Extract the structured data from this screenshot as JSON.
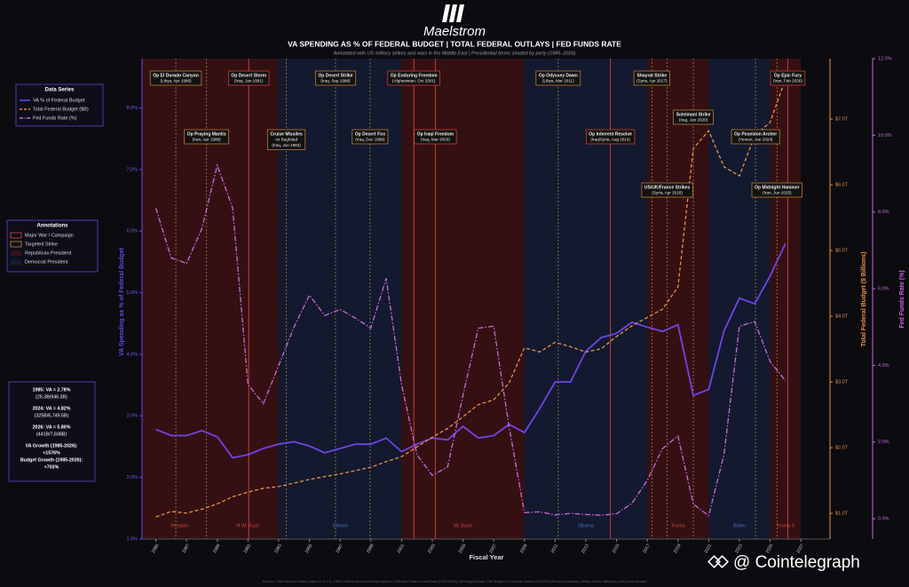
{
  "chart_data": {
    "type": "line",
    "brand": "Maelstrom",
    "title": "VA SPENDING AS % OF FEDERAL BUDGET  |  TOTAL FEDERAL OUTLAYS  |  FED FUNDS RATE",
    "subtitle": "Annotated with US military strikes and wars in the Middle East  |  Presidential terms shaded by party  (1985–2026)",
    "xlabel": "Fiscal Year",
    "ylabel": "VA Spending as % of Federal Budget",
    "y2label": "Total Federal Budget ($ Billions)",
    "y3label": "Fed Funds Rate (%)",
    "source": "Sources: OMB Historical Tables (Table 4.1 & 3.2), FRED Federal Government Expenditures & Effective Federal Funds Rate (FEDFUNDS), VA Budget in Brief, CBO Budget & Economic Outlook 2025-2036 (Revenue Baseline), Military strikes: Wikipedia, DoD press releases",
    "watermark": "@ Cointelegraph",
    "xlim": [
      1984.1,
      2028.9
    ],
    "xticks": [
      1985,
      1987,
      1989,
      1991,
      1993,
      1995,
      1997,
      1999,
      2001,
      2003,
      2005,
      2007,
      2009,
      2011,
      2013,
      2015,
      2017,
      2019,
      2021,
      2023,
      2025,
      2027
    ],
    "ylim": [
      1.0,
      8.8
    ],
    "yticks": [
      {
        "value": 1,
        "label": "1.0%"
      },
      {
        "value": 2,
        "label": "2.0%"
      },
      {
        "value": 3,
        "label": "3.0%"
      },
      {
        "value": 4,
        "label": "4.0%"
      },
      {
        "value": 5,
        "label": "5.0%"
      },
      {
        "value": 6,
        "label": "6.0%"
      },
      {
        "value": 7,
        "label": "7.0%"
      },
      {
        "value": 8,
        "label": "8.0%"
      }
    ],
    "y2lim": [
      610,
      7920
    ],
    "y2ticks": [
      {
        "value": 1000,
        "label": "$1.0T"
      },
      {
        "value": 2000,
        "label": "$2.0T"
      },
      {
        "value": 3000,
        "label": "$3.0T"
      },
      {
        "value": 4000,
        "label": "$4.0T"
      },
      {
        "value": 5000,
        "label": "$5.0T"
      },
      {
        "value": 6000,
        "label": "$6.0T"
      },
      {
        "value": 7000,
        "label": "$7.0T"
      }
    ],
    "y3lim": [
      -0.53,
      12
    ],
    "y3ticks": [
      {
        "value": 0,
        "label": "0.0%"
      },
      {
        "value": 2,
        "label": "2.0%"
      },
      {
        "value": 4,
        "label": "4.0%"
      },
      {
        "value": 6,
        "label": "6.0%"
      },
      {
        "value": 8,
        "label": "8.0%"
      },
      {
        "value": 10,
        "label": "10.0%"
      },
      {
        "value": 12,
        "label": "12.0%"
      }
    ],
    "grid": false,
    "x": [
      1985,
      1986,
      1987,
      1988,
      1989,
      1990,
      1991,
      1992,
      1993,
      1994,
      1995,
      1996,
      1997,
      1998,
      1999,
      2000,
      2001,
      2002,
      2003,
      2004,
      2005,
      2006,
      2007,
      2008,
      2009,
      2010,
      2011,
      2012,
      2013,
      2014,
      2015,
      2016,
      2017,
      2018,
      2019,
      2020,
      2021,
      2022,
      2023,
      2024,
      2025,
      2026
    ],
    "series": [
      {
        "name": "VA % of Federal Budget",
        "color": "#7044e6",
        "axis": "y",
        "values": [
          2.78,
          2.68,
          2.68,
          2.76,
          2.66,
          2.32,
          2.37,
          2.47,
          2.54,
          2.58,
          2.51,
          2.4,
          2.47,
          2.54,
          2.54,
          2.64,
          2.42,
          2.54,
          2.64,
          2.61,
          2.83,
          2.64,
          2.68,
          2.86,
          2.73,
          3.12,
          3.55,
          3.55,
          4.05,
          4.27,
          4.34,
          4.52,
          4.44,
          4.37,
          4.48,
          3.33,
          3.43,
          4.38,
          4.91,
          4.82,
          5.27,
          5.8
        ]
      },
      {
        "name": "Total Federal Budget ($B)",
        "color": "#e8914a",
        "axis": "y2",
        "values": [
          946,
          1030,
          1004,
          1065,
          1144,
          1253,
          1324,
          1382,
          1409,
          1462,
          1516,
          1561,
          1601,
          1652,
          1702,
          1789,
          1863,
          2011,
          2160,
          2293,
          2472,
          2655,
          2729,
          2983,
          3518,
          3457,
          3603,
          3537,
          3455,
          3506,
          3692,
          3853,
          3982,
          4109,
          4447,
          6552,
          6822,
          6273,
          6135,
          6750,
          6950,
          7608
        ]
      },
      {
        "name": "Fed Funds Rate (%)",
        "color": "#c86bd8",
        "axis": "y3",
        "values": [
          8.1,
          6.8,
          6.66,
          7.57,
          9.22,
          8.1,
          3.5,
          3.0,
          4.0,
          5.0,
          5.83,
          5.3,
          5.46,
          5.23,
          4.97,
          6.27,
          3.5,
          1.67,
          1.13,
          1.35,
          3.22,
          4.97,
          5.02,
          2.4,
          0.16,
          0.18,
          0.1,
          0.14,
          0.11,
          0.09,
          0.13,
          0.4,
          1.0,
          1.83,
          2.16,
          0.38,
          0.08,
          1.68,
          5.02,
          5.14,
          4.1,
          3.6
        ]
      }
    ],
    "legend_title": "Data Series",
    "annotations_legend": {
      "title": "Annotations",
      "items": [
        {
          "label": "Major War / Campaign",
          "kind": "major"
        },
        {
          "label": "Targeted Strike",
          "kind": "targeted"
        },
        {
          "label": "Republican President",
          "kind": "republican"
        },
        {
          "label": "Democrat President",
          "kind": "democrat"
        }
      ]
    },
    "stats": [
      "1985: VA = 2.78%",
      "(26.3B/946.3B)",
      "2024: VA = 4.82%",
      "(325B/6,749.5B)",
      "2026: VA = 5.80%",
      "(441B/7,608B)",
      "VA Growth (1985-2026):",
      "+1576%",
      "Budget Growth (1985-2026):",
      "+703%"
    ],
    "presidents": [
      {
        "name": "Reagan",
        "party": "republican",
        "start": 1981,
        "end": 1989
      },
      {
        "name": "H.W. Bush",
        "party": "republican",
        "start": 1989,
        "end": 1993
      },
      {
        "name": "Clinton",
        "party": "democrat",
        "start": 1993,
        "end": 2001
      },
      {
        "name": "W. Bush",
        "party": "republican",
        "start": 2001,
        "end": 2009
      },
      {
        "name": "Obama",
        "party": "democrat",
        "start": 2009,
        "end": 2017
      },
      {
        "name": "Trump",
        "party": "republican",
        "start": 2017,
        "end": 2021
      },
      {
        "name": "Biden",
        "party": "democrat",
        "start": 2021,
        "end": 2025
      },
      {
        "name": "Trump II",
        "party": "republican",
        "start": 2025,
        "end": 2027
      }
    ],
    "events": [
      {
        "lines": [
          "Op El Dorado Canyon",
          "(Libya, Apr 1986)"
        ],
        "kind": "targeted",
        "x": 1986.3
      },
      {
        "lines": [
          "Op Praying Mantis",
          "(Iran, Apr 1988)"
        ],
        "kind": "targeted",
        "x": 1988.3
      },
      {
        "lines": [
          "Op Desert Storm",
          "(Iraq, Jan 1991)"
        ],
        "kind": "major",
        "x": 1991.05
      },
      {
        "lines": [
          "Cruise Missiles",
          "on Baghdad",
          "(Iraq, Jun 1993)"
        ],
        "kind": "targeted",
        "x": 1993.5
      },
      {
        "lines": [
          "Op Desert Strike",
          "(Iraq, Sep 1996)"
        ],
        "kind": "targeted",
        "x": 1996.7
      },
      {
        "lines": [
          "Op Desert Fox",
          "(Iraq, Dec 1998)"
        ],
        "kind": "targeted",
        "x": 1998.95
      },
      {
        "lines": [
          "Op Enduring Freedom",
          "(Afghanistan, Oct 2001)"
        ],
        "kind": "major",
        "x": 2001.8
      },
      {
        "lines": [
          "Op Iraqi Freedom",
          "(Iraq, Mar 2003)"
        ],
        "kind": "major",
        "x": 2003.2
      },
      {
        "lines": [
          "Op Odyssey Dawn",
          "(Libya, Mar 2011)"
        ],
        "kind": "targeted",
        "x": 2011.2
      },
      {
        "lines": [
          "Op Inherent Resolve",
          "(Iraq/Syria, Aug 2014)"
        ],
        "kind": "major",
        "x": 2014.6
      },
      {
        "lines": [
          "Shayrat Strike",
          "(Syria, Apr 2017)"
        ],
        "kind": "targeted",
        "x": 2017.3
      },
      {
        "lines": [
          "US/UK/France Strikes",
          "(Syria, Apr 2018)"
        ],
        "kind": "targeted",
        "x": 2018.3
      },
      {
        "lines": [
          "Soleimani Strike",
          "(Iraq, Jan 2020)"
        ],
        "kind": "targeted",
        "x": 2020.0
      },
      {
        "lines": [
          "Op Poseidon Archer",
          "(Yemen, Jan 2024)"
        ],
        "kind": "targeted",
        "x": 2024.05
      },
      {
        "lines": [
          "Op Midnight Hammer",
          "(Iran, Jun 2025)"
        ],
        "kind": "targeted",
        "x": 2025.45
      },
      {
        "lines": [
          "Op Epic Fury",
          "(Iran, Feb 2026)"
        ],
        "kind": "major",
        "x": 2026.15
      }
    ]
  }
}
